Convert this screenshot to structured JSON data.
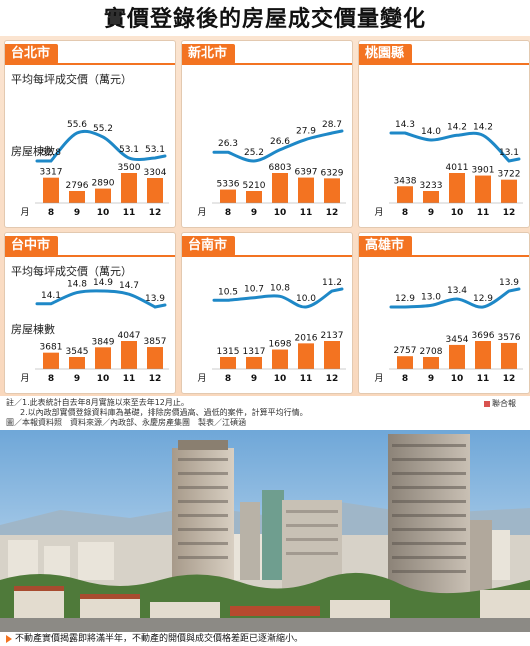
{
  "title": "實價登錄後的房屋成交價量變化",
  "chart_data": [
    {
      "type": "line+bar",
      "region": "台北市",
      "price_label": "平均每坪成交價（萬元）",
      "units_label": "房屋棟數",
      "month_label": "月",
      "categories": [
        "8",
        "9",
        "10",
        "11",
        "12"
      ],
      "price": [
        52.8,
        55.6,
        55.2,
        53.1,
        53.1
      ],
      "units": [
        3317,
        2796,
        2890,
        3500,
        3304
      ]
    },
    {
      "type": "line+bar",
      "region": "新北市",
      "month_label": "月",
      "categories": [
        "8",
        "9",
        "10",
        "11",
        "12"
      ],
      "price": [
        26.3,
        25.2,
        26.6,
        27.9,
        28.7
      ],
      "units": [
        5336,
        5210,
        6803,
        6397,
        6329
      ]
    },
    {
      "type": "line+bar",
      "region": "桃園縣",
      "month_label": "月",
      "categories": [
        "8",
        "9",
        "10",
        "11",
        "12"
      ],
      "price": [
        14.3,
        14.0,
        14.2,
        14.2,
        13.1
      ],
      "units": [
        3438,
        3233,
        4011,
        3901,
        3722
      ]
    },
    {
      "type": "line+bar",
      "region": "台中市",
      "price_label": "平均每坪成交價（萬元）",
      "units_label": "房屋棟數",
      "month_label": "月",
      "categories": [
        "8",
        "9",
        "10",
        "11",
        "12"
      ],
      "price": [
        14.1,
        14.8,
        14.9,
        14.7,
        13.9
      ],
      "units": [
        3681,
        3545,
        3849,
        4047,
        3857
      ]
    },
    {
      "type": "line+bar",
      "region": "台南市",
      "month_label": "月",
      "categories": [
        "8",
        "9",
        "10",
        "11",
        "12"
      ],
      "price": [
        10.5,
        10.7,
        10.8,
        10.0,
        11.2
      ],
      "units": [
        1315,
        1317,
        1698,
        2016,
        2137
      ]
    },
    {
      "type": "line+bar",
      "region": "高雄市",
      "month_label": "月",
      "categories": [
        "8",
        "9",
        "10",
        "11",
        "12"
      ],
      "price": [
        12.9,
        13.0,
        13.4,
        12.9,
        13.9
      ],
      "units": [
        2757,
        2708,
        3454,
        3696,
        3576
      ]
    }
  ],
  "notes": {
    "line1": "註／1.此表統計自去年8月實施以來至去年12月止。",
    "line2": "2.以內政部實價登錄資料庫為基礎，排除房價過高、過低的案件，計算平均行情。",
    "line3": "圖／本報資料照　資料來源／內政部、永慶房產集團　製表／江碩涵",
    "badge": "聯合報"
  },
  "caption": "不動產實價揭露即將滿半年，不動產的開價與成交價格差距已逐漸縮小。",
  "colors": {
    "accent": "#f37321",
    "line": "#1e88c7",
    "bar": "#f37321",
    "panel_bg": "#fbe4d0"
  }
}
